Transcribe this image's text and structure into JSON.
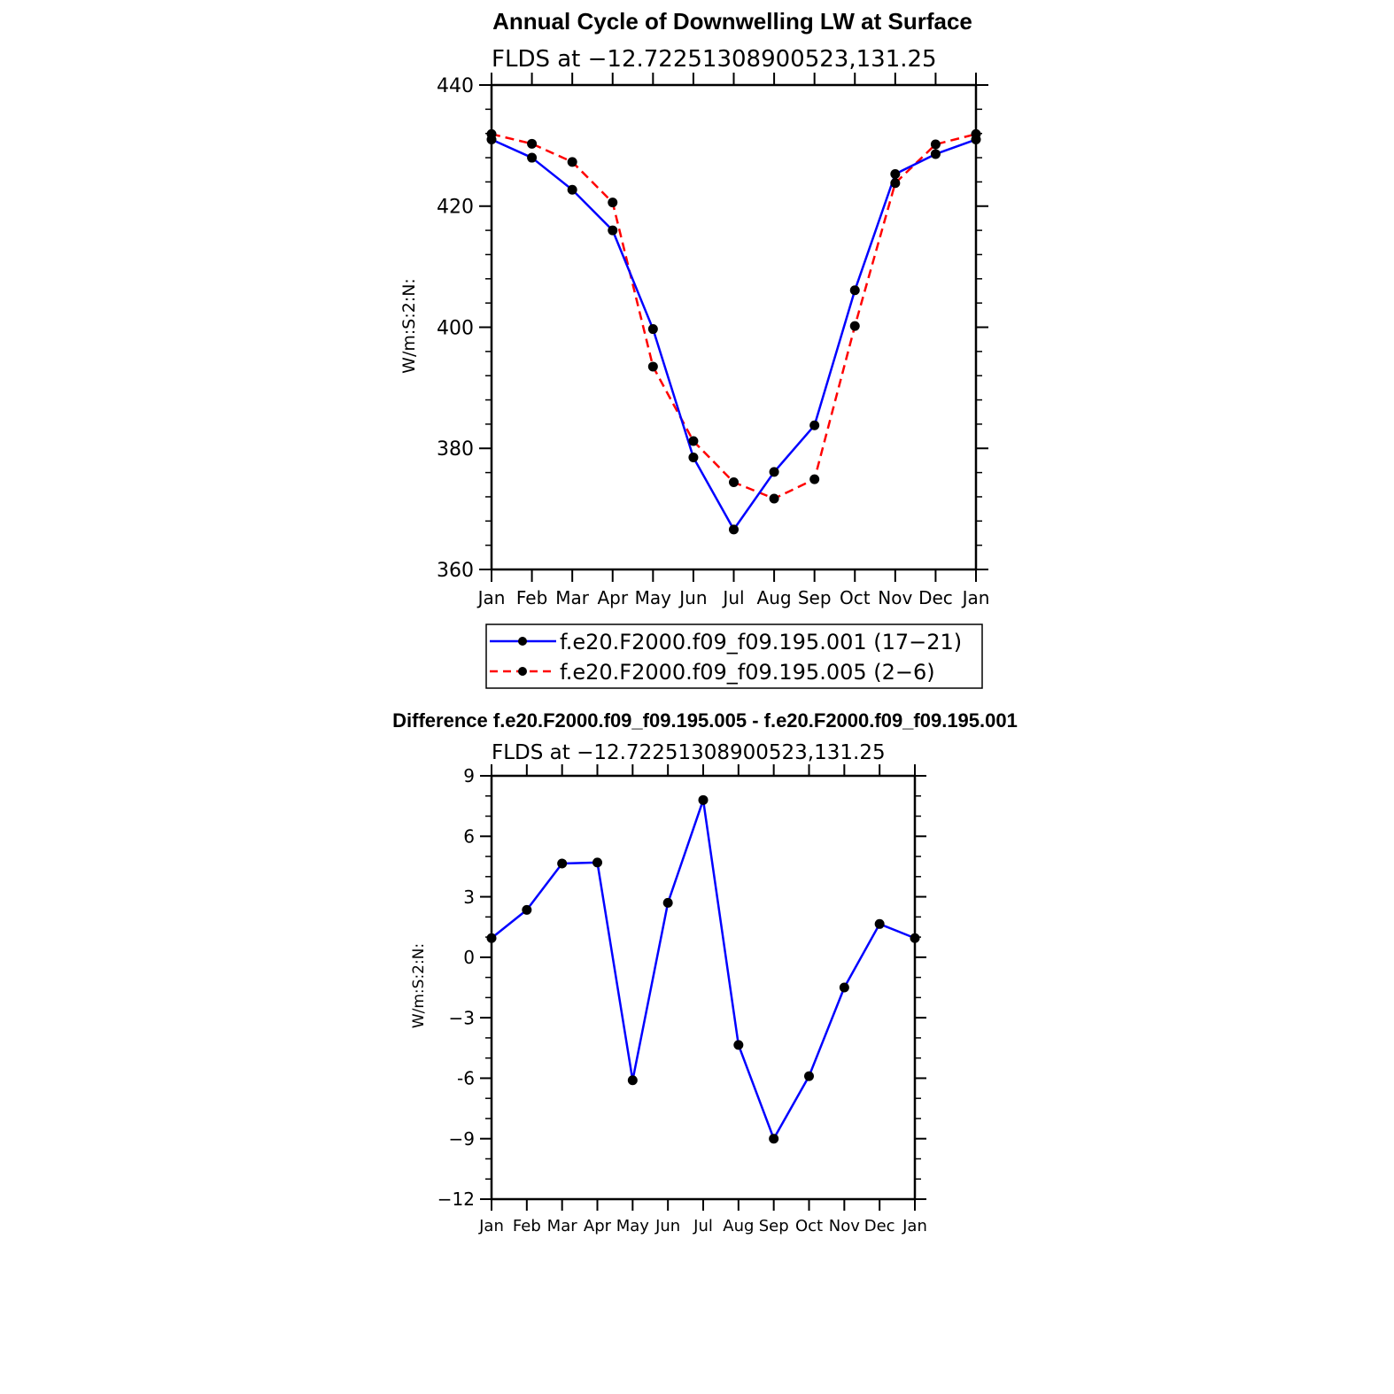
{
  "chart_data": [
    {
      "type": "line",
      "title": "Annual Cycle of Downwelling LW at Surface",
      "subtitle": "FLDS at −12.72251308900523,131.25",
      "ylabel": "W/m:S:2:N:",
      "xlabel": "",
      "categories": [
        "Jan",
        "Feb",
        "Mar",
        "Apr",
        "May",
        "Jun",
        "Jul",
        "Aug",
        "Sep",
        "Oct",
        "Nov",
        "Dec",
        "Jan"
      ],
      "ylim": [
        360,
        440
      ],
      "yticks": [
        360,
        380,
        400,
        420,
        440
      ],
      "ytick_labels": [
        "360",
        "380",
        "400",
        "420",
        "440"
      ],
      "legend_position": "bottom",
      "series": [
        {
          "name": "f.e20.F2000.f09_f09.195.001 (17−21)",
          "color": "#0000ff",
          "dash": "solid",
          "values": [
            431.0,
            428.0,
            422.7,
            416.0,
            399.7,
            378.5,
            366.6,
            376.1,
            383.8,
            406.1,
            425.3,
            428.6,
            431.0
          ]
        },
        {
          "name": "f.e20.F2000.f09_f09.195.005 (2−6)",
          "color": "#ff0000",
          "dash": "dashed",
          "values": [
            431.9,
            430.3,
            427.3,
            420.6,
            393.5,
            381.2,
            374.4,
            371.7,
            374.9,
            400.2,
            423.8,
            430.2,
            431.9
          ]
        }
      ]
    },
    {
      "type": "line",
      "title": "Difference f.e20.F2000.f09_f09.195.005 - f.e20.F2000.f09_f09.195.001",
      "subtitle": "FLDS at −12.72251308900523,131.25",
      "ylabel": "W/m:S:2:N:",
      "xlabel": "",
      "categories": [
        "Jan",
        "Feb",
        "Mar",
        "Apr",
        "May",
        "Jun",
        "Jul",
        "Aug",
        "Sep",
        "Oct",
        "Nov",
        "Dec",
        "Jan"
      ],
      "ylim": [
        -12,
        9
      ],
      "yticks": [
        -12,
        -9,
        -6,
        -3,
        0,
        3,
        6,
        9
      ],
      "ytick_labels": [
        "−12",
        "−9",
        "-6",
        "−3",
        "0",
        "3",
        "6",
        "9"
      ],
      "series": [
        {
          "name": "difference",
          "color": "#0000ff",
          "dash": "solid",
          "values": [
            0.95,
            2.35,
            4.65,
            4.7,
            -6.1,
            2.7,
            7.8,
            -4.35,
            -9.0,
            -5.9,
            -1.5,
            1.65,
            0.95
          ]
        }
      ]
    }
  ]
}
